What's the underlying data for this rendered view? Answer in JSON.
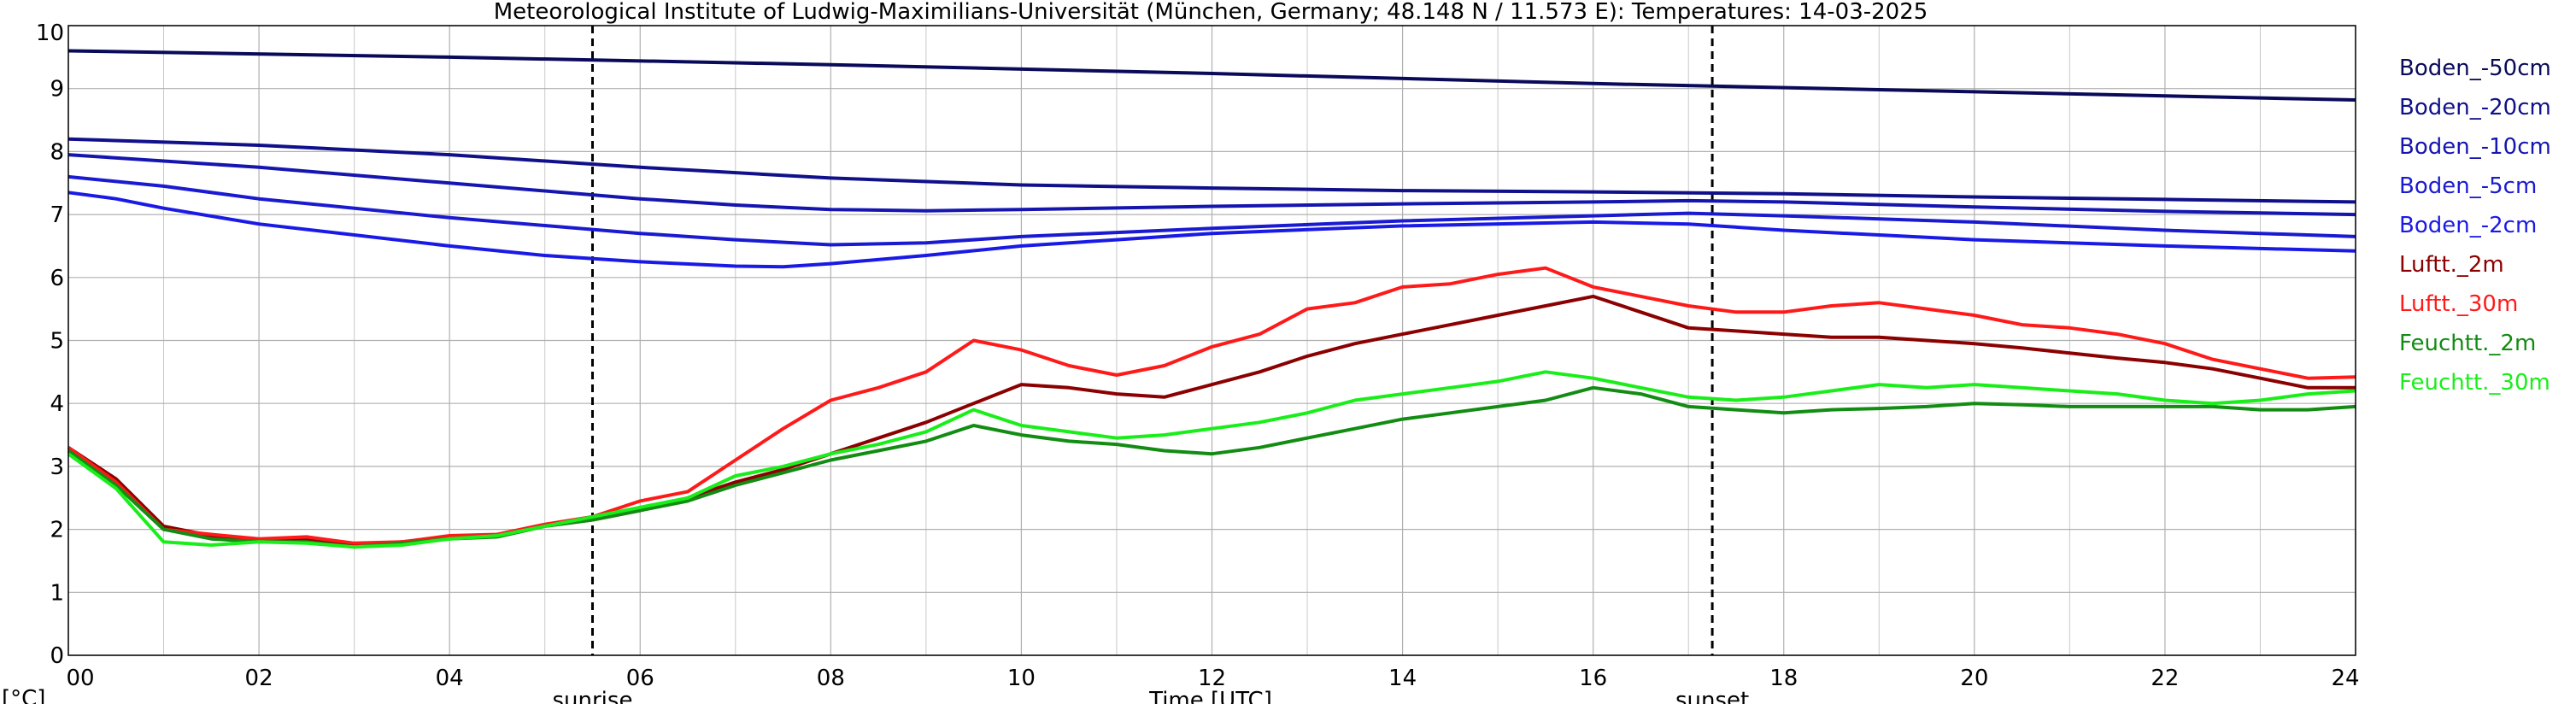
{
  "chart_data": {
    "type": "line",
    "title": "Meteorological Institute of Ludwig-Maximilians-Universität (München, Germany; 48.148 N / 11.573 E):  Temperatures: 14-03-2025",
    "xlabel": "Time [UTC]",
    "ylabel": "[°C]",
    "xlim": [
      0,
      24
    ],
    "ylim": [
      0,
      10
    ],
    "xticks": [
      "00",
      "02",
      "04",
      "06",
      "08",
      "10",
      "12",
      "14",
      "16",
      "18",
      "20",
      "22",
      "24"
    ],
    "yticks": [
      "0",
      "1",
      "2",
      "3",
      "4",
      "5",
      "6",
      "7",
      "8",
      "9",
      "10"
    ],
    "grid": true,
    "legend_position": "right",
    "markers": [
      {
        "x": 5.5,
        "label": "sunrise"
      },
      {
        "x": 17.25,
        "label": "sunset"
      }
    ],
    "series": [
      {
        "name": "Boden_-50cm",
        "color": "#0a0a5a",
        "points": [
          [
            0,
            9.6
          ],
          [
            4,
            9.5
          ],
          [
            8,
            9.38
          ],
          [
            12,
            9.24
          ],
          [
            16,
            9.08
          ],
          [
            20,
            8.95
          ],
          [
            24,
            8.82
          ]
        ]
      },
      {
        "name": "Boden_-20cm",
        "color": "#10108a",
        "points": [
          [
            0,
            8.2
          ],
          [
            2,
            8.1
          ],
          [
            4,
            7.95
          ],
          [
            6,
            7.75
          ],
          [
            8,
            7.58
          ],
          [
            10,
            7.47
          ],
          [
            12,
            7.42
          ],
          [
            14,
            7.38
          ],
          [
            16,
            7.36
          ],
          [
            18,
            7.33
          ],
          [
            20,
            7.28
          ],
          [
            22,
            7.24
          ],
          [
            24,
            7.2
          ]
        ]
      },
      {
        "name": "Boden_-10cm",
        "color": "#1515b0",
        "points": [
          [
            0,
            7.95
          ],
          [
            2,
            7.75
          ],
          [
            4,
            7.5
          ],
          [
            6,
            7.25
          ],
          [
            7,
            7.15
          ],
          [
            8,
            7.08
          ],
          [
            9,
            7.06
          ],
          [
            10,
            7.08
          ],
          [
            12,
            7.13
          ],
          [
            14,
            7.17
          ],
          [
            16,
            7.2
          ],
          [
            17,
            7.22
          ],
          [
            18,
            7.2
          ],
          [
            20,
            7.12
          ],
          [
            22,
            7.05
          ],
          [
            24,
            7.0
          ]
        ]
      },
      {
        "name": "Boden_-5cm",
        "color": "#1a1ad0",
        "points": [
          [
            0,
            7.6
          ],
          [
            1,
            7.45
          ],
          [
            2,
            7.25
          ],
          [
            4,
            6.95
          ],
          [
            6,
            6.7
          ],
          [
            7,
            6.6
          ],
          [
            8,
            6.52
          ],
          [
            9,
            6.55
          ],
          [
            10,
            6.65
          ],
          [
            12,
            6.78
          ],
          [
            14,
            6.9
          ],
          [
            16,
            6.98
          ],
          [
            17,
            7.02
          ],
          [
            18,
            6.98
          ],
          [
            20,
            6.88
          ],
          [
            22,
            6.75
          ],
          [
            24,
            6.65
          ]
        ]
      },
      {
        "name": "Boden_-2cm",
        "color": "#1a1ae6",
        "points": [
          [
            0,
            7.35
          ],
          [
            0.5,
            7.25
          ],
          [
            1,
            7.1
          ],
          [
            2,
            6.85
          ],
          [
            4,
            6.5
          ],
          [
            5,
            6.35
          ],
          [
            6,
            6.25
          ],
          [
            7,
            6.18
          ],
          [
            7.5,
            6.17
          ],
          [
            8,
            6.22
          ],
          [
            9,
            6.35
          ],
          [
            10,
            6.5
          ],
          [
            11,
            6.6
          ],
          [
            12,
            6.7
          ],
          [
            14,
            6.82
          ],
          [
            16,
            6.88
          ],
          [
            17,
            6.85
          ],
          [
            18,
            6.75
          ],
          [
            20,
            6.6
          ],
          [
            22,
            6.5
          ],
          [
            24,
            6.42
          ]
        ]
      },
      {
        "name": "Luftt._2m",
        "color": "#8b0000",
        "points": [
          [
            0,
            3.3
          ],
          [
            0.5,
            2.8
          ],
          [
            1,
            2.05
          ],
          [
            1.5,
            1.9
          ],
          [
            2,
            1.82
          ],
          [
            2.5,
            1.85
          ],
          [
            3,
            1.75
          ],
          [
            3.5,
            1.8
          ],
          [
            4,
            1.88
          ],
          [
            4.5,
            1.9
          ],
          [
            5,
            2.05
          ],
          [
            5.5,
            2.15
          ],
          [
            6,
            2.3
          ],
          [
            6.5,
            2.5
          ],
          [
            7,
            2.75
          ],
          [
            7.5,
            2.95
          ],
          [
            8,
            3.2
          ],
          [
            8.5,
            3.45
          ],
          [
            9,
            3.7
          ],
          [
            9.5,
            4.0
          ],
          [
            10,
            4.3
          ],
          [
            10.5,
            4.25
          ],
          [
            11,
            4.15
          ],
          [
            11.5,
            4.1
          ],
          [
            12,
            4.3
          ],
          [
            12.5,
            4.5
          ],
          [
            13,
            4.75
          ],
          [
            13.5,
            4.95
          ],
          [
            14,
            5.1
          ],
          [
            14.5,
            5.25
          ],
          [
            15,
            5.4
          ],
          [
            15.5,
            5.55
          ],
          [
            16,
            5.7
          ],
          [
            16.5,
            5.45
          ],
          [
            17,
            5.2
          ],
          [
            17.5,
            5.15
          ],
          [
            18,
            5.1
          ],
          [
            18.5,
            5.05
          ],
          [
            19,
            5.05
          ],
          [
            19.5,
            5.0
          ],
          [
            20,
            4.95
          ],
          [
            20.5,
            4.88
          ],
          [
            21,
            4.8
          ],
          [
            21.5,
            4.72
          ],
          [
            22,
            4.65
          ],
          [
            22.5,
            4.55
          ],
          [
            23,
            4.4
          ],
          [
            23.5,
            4.25
          ],
          [
            24,
            4.25
          ]
        ]
      },
      {
        "name": "Luftt._30m",
        "color": "#ff1a1a",
        "points": [
          [
            0,
            3.3
          ],
          [
            0.5,
            2.75
          ],
          [
            1,
            2.0
          ],
          [
            1.5,
            1.92
          ],
          [
            2,
            1.85
          ],
          [
            2.5,
            1.88
          ],
          [
            3,
            1.78
          ],
          [
            3.5,
            1.8
          ],
          [
            4,
            1.9
          ],
          [
            4.5,
            1.92
          ],
          [
            5,
            2.08
          ],
          [
            5.5,
            2.2
          ],
          [
            6,
            2.45
          ],
          [
            6.5,
            2.6
          ],
          [
            7,
            3.1
          ],
          [
            7.5,
            3.6
          ],
          [
            8,
            4.05
          ],
          [
            8.5,
            4.25
          ],
          [
            9,
            4.5
          ],
          [
            9.5,
            5.0
          ],
          [
            10,
            4.85
          ],
          [
            10.5,
            4.6
          ],
          [
            11,
            4.45
          ],
          [
            11.5,
            4.6
          ],
          [
            12,
            4.9
          ],
          [
            12.5,
            5.1
          ],
          [
            13,
            5.5
          ],
          [
            13.5,
            5.6
          ],
          [
            14,
            5.85
          ],
          [
            14.5,
            5.9
          ],
          [
            15,
            6.05
          ],
          [
            15.5,
            6.15
          ],
          [
            16,
            5.85
          ],
          [
            16.5,
            5.7
          ],
          [
            17,
            5.55
          ],
          [
            17.5,
            5.45
          ],
          [
            18,
            5.45
          ],
          [
            18.5,
            5.55
          ],
          [
            19,
            5.6
          ],
          [
            19.5,
            5.5
          ],
          [
            20,
            5.4
          ],
          [
            20.5,
            5.25
          ],
          [
            21,
            5.2
          ],
          [
            21.5,
            5.1
          ],
          [
            22,
            4.95
          ],
          [
            22.5,
            4.7
          ],
          [
            23,
            4.55
          ],
          [
            23.5,
            4.4
          ],
          [
            24,
            4.42
          ]
        ]
      },
      {
        "name": "Feuchtt._2m",
        "color": "#128c12",
        "points": [
          [
            0,
            3.25
          ],
          [
            0.5,
            2.7
          ],
          [
            1,
            2.0
          ],
          [
            1.5,
            1.85
          ],
          [
            2,
            1.8
          ],
          [
            2.5,
            1.8
          ],
          [
            3,
            1.72
          ],
          [
            3.5,
            1.78
          ],
          [
            4,
            1.85
          ],
          [
            4.5,
            1.88
          ],
          [
            5,
            2.05
          ],
          [
            5.5,
            2.15
          ],
          [
            6,
            2.3
          ],
          [
            6.5,
            2.45
          ],
          [
            7,
            2.7
          ],
          [
            7.5,
            2.9
          ],
          [
            8,
            3.1
          ],
          [
            8.5,
            3.25
          ],
          [
            9,
            3.4
          ],
          [
            9.5,
            3.65
          ],
          [
            10,
            3.5
          ],
          [
            10.5,
            3.4
          ],
          [
            11,
            3.35
          ],
          [
            11.5,
            3.25
          ],
          [
            12,
            3.2
          ],
          [
            12.5,
            3.3
          ],
          [
            13,
            3.45
          ],
          [
            13.5,
            3.6
          ],
          [
            14,
            3.75
          ],
          [
            14.5,
            3.85
          ],
          [
            15,
            3.95
          ],
          [
            15.5,
            4.05
          ],
          [
            16,
            4.25
          ],
          [
            16.5,
            4.15
          ],
          [
            17,
            3.95
          ],
          [
            17.5,
            3.9
          ],
          [
            18,
            3.85
          ],
          [
            18.5,
            3.9
          ],
          [
            19,
            3.92
          ],
          [
            19.5,
            3.95
          ],
          [
            20,
            4.0
          ],
          [
            20.5,
            3.98
          ],
          [
            21,
            3.95
          ],
          [
            21.5,
            3.95
          ],
          [
            22,
            3.95
          ],
          [
            22.5,
            3.95
          ],
          [
            23,
            3.9
          ],
          [
            23.5,
            3.9
          ],
          [
            24,
            3.95
          ]
        ]
      },
      {
        "name": "Feuchtt._30m",
        "color": "#1aee1a",
        "points": [
          [
            0,
            3.2
          ],
          [
            0.5,
            2.65
          ],
          [
            1,
            1.8
          ],
          [
            1.5,
            1.75
          ],
          [
            2,
            1.8
          ],
          [
            2.5,
            1.78
          ],
          [
            3,
            1.72
          ],
          [
            3.5,
            1.75
          ],
          [
            4,
            1.85
          ],
          [
            4.5,
            1.9
          ],
          [
            5,
            2.05
          ],
          [
            5.5,
            2.2
          ],
          [
            6,
            2.35
          ],
          [
            6.5,
            2.5
          ],
          [
            7,
            2.85
          ],
          [
            7.5,
            3.0
          ],
          [
            8,
            3.2
          ],
          [
            8.5,
            3.35
          ],
          [
            9,
            3.55
          ],
          [
            9.5,
            3.9
          ],
          [
            10,
            3.65
          ],
          [
            10.5,
            3.55
          ],
          [
            11,
            3.45
          ],
          [
            11.5,
            3.5
          ],
          [
            12,
            3.6
          ],
          [
            12.5,
            3.7
          ],
          [
            13,
            3.85
          ],
          [
            13.5,
            4.05
          ],
          [
            14,
            4.15
          ],
          [
            14.5,
            4.25
          ],
          [
            15,
            4.35
          ],
          [
            15.5,
            4.5
          ],
          [
            16,
            4.4
          ],
          [
            16.5,
            4.25
          ],
          [
            17,
            4.1
          ],
          [
            17.5,
            4.05
          ],
          [
            18,
            4.1
          ],
          [
            18.5,
            4.2
          ],
          [
            19,
            4.3
          ],
          [
            19.5,
            4.25
          ],
          [
            20,
            4.3
          ],
          [
            20.5,
            4.25
          ],
          [
            21,
            4.2
          ],
          [
            21.5,
            4.15
          ],
          [
            22,
            4.05
          ],
          [
            22.5,
            4.0
          ],
          [
            23,
            4.05
          ],
          [
            23.5,
            4.15
          ],
          [
            24,
            4.2
          ]
        ]
      }
    ]
  }
}
